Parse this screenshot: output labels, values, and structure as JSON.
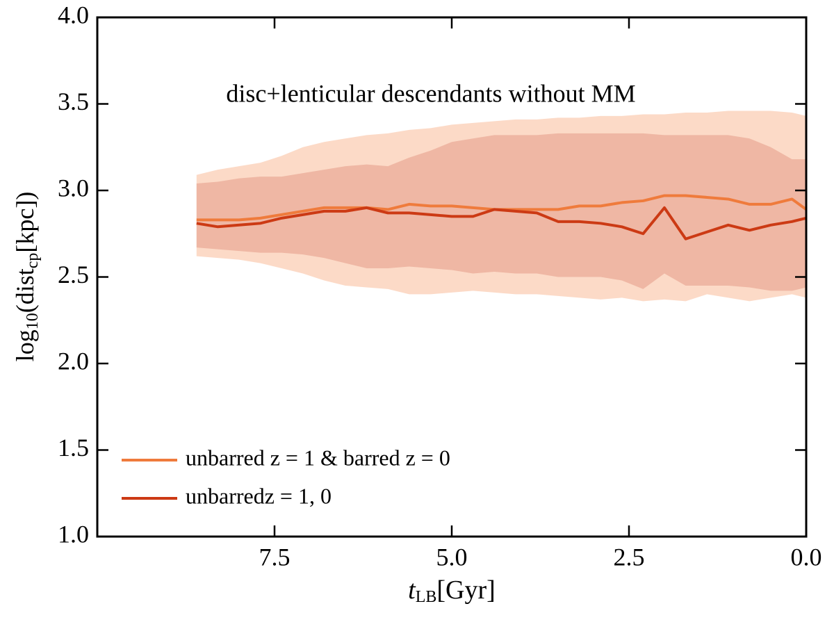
{
  "chart_data": {
    "type": "line",
    "annotation": "disc+lenticular descendants without MM",
    "xlabel": [
      "t",
      "LB",
      "[Gyr]"
    ],
    "ylabel": [
      "log",
      "10",
      "(dist",
      "cp",
      "[kpc])"
    ],
    "xlim": [
      10.0,
      0.0
    ],
    "ylim": [
      1.0,
      4.0
    ],
    "xticks": [
      7.5,
      {
        "value": 5.0,
        "label": "5.0"
      },
      2.5,
      {
        "value": 0.0,
        "label": "0.0"
      }
    ],
    "yticks": [
      {
        "value": 1.0,
        "label": "1.0"
      },
      1.5,
      {
        "value": 2.0,
        "label": "2.0"
      },
      2.5,
      {
        "value": 3.0,
        "label": "3.0"
      },
      3.5,
      {
        "value": 4.0,
        "label": "4.0"
      }
    ],
    "legend": "lower left",
    "x": [
      8.6,
      8.3,
      8.0,
      7.7,
      7.4,
      7.1,
      6.8,
      6.5,
      6.2,
      5.9,
      5.6,
      5.3,
      5.0,
      4.7,
      4.4,
      4.1,
      3.8,
      3.5,
      3.2,
      2.9,
      2.6,
      2.3,
      2.0,
      1.7,
      1.4,
      1.1,
      0.8,
      0.5,
      0.2,
      0.0
    ],
    "series": [
      {
        "name": "unbarred z = 1 & barred z = 0",
        "color": "#ef7b3c",
        "band_color": "#fbd3bd",
        "values": [
          2.83,
          2.83,
          2.83,
          2.84,
          2.86,
          2.88,
          2.9,
          2.9,
          2.9,
          2.89,
          2.92,
          2.91,
          2.91,
          2.9,
          2.89,
          2.89,
          2.89,
          2.89,
          2.91,
          2.91,
          2.93,
          2.94,
          2.97,
          2.97,
          2.96,
          2.95,
          2.92,
          2.92,
          2.95,
          2.89
        ],
        "band_upper": [
          3.09,
          3.12,
          3.14,
          3.16,
          3.2,
          3.25,
          3.28,
          3.3,
          3.32,
          3.33,
          3.35,
          3.36,
          3.38,
          3.39,
          3.4,
          3.41,
          3.41,
          3.42,
          3.42,
          3.43,
          3.43,
          3.44,
          3.44,
          3.45,
          3.45,
          3.46,
          3.46,
          3.46,
          3.45,
          3.43
        ],
        "band_lower": [
          2.62,
          2.61,
          2.6,
          2.58,
          2.55,
          2.52,
          2.48,
          2.45,
          2.44,
          2.43,
          2.4,
          2.4,
          2.41,
          2.42,
          2.41,
          2.4,
          2.4,
          2.39,
          2.38,
          2.37,
          2.38,
          2.36,
          2.37,
          2.36,
          2.4,
          2.38,
          2.36,
          2.38,
          2.4,
          2.38
        ]
      },
      {
        "name": "unbarredz = 1, 0",
        "color": "#cc3a14",
        "band_color": "#e6a08c",
        "values": [
          2.81,
          2.79,
          2.8,
          2.81,
          2.84,
          2.86,
          2.88,
          2.88,
          2.9,
          2.87,
          2.87,
          2.86,
          2.85,
          2.85,
          2.89,
          2.88,
          2.87,
          2.82,
          2.82,
          2.81,
          2.79,
          2.75,
          2.9,
          2.72,
          2.76,
          2.8,
          2.77,
          2.8,
          2.82,
          2.84
        ],
        "band_upper": [
          3.04,
          3.05,
          3.07,
          3.08,
          3.08,
          3.1,
          3.12,
          3.14,
          3.15,
          3.14,
          3.19,
          3.23,
          3.28,
          3.3,
          3.32,
          3.32,
          3.32,
          3.33,
          3.33,
          3.33,
          3.33,
          3.33,
          3.32,
          3.32,
          3.32,
          3.32,
          3.3,
          3.25,
          3.18,
          3.18
        ],
        "band_lower": [
          2.67,
          2.66,
          2.65,
          2.64,
          2.64,
          2.63,
          2.61,
          2.58,
          2.55,
          2.55,
          2.56,
          2.55,
          2.54,
          2.52,
          2.53,
          2.52,
          2.52,
          2.5,
          2.5,
          2.5,
          2.48,
          2.43,
          2.52,
          2.45,
          2.45,
          2.45,
          2.44,
          2.42,
          2.42,
          2.44
        ]
      }
    ]
  }
}
